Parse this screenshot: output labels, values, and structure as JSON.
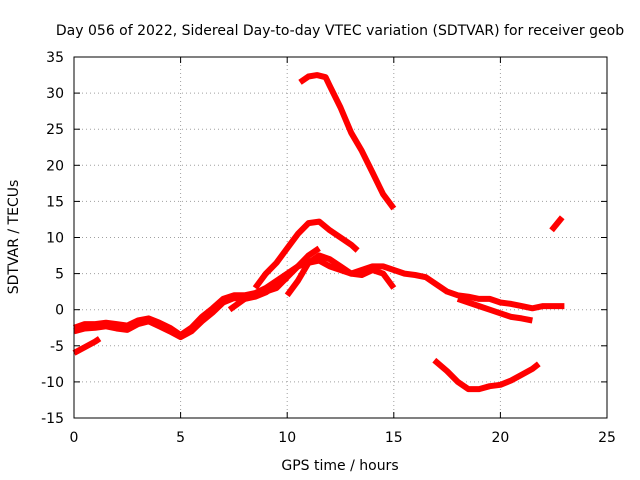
{
  "chart_data": {
    "type": "scatter",
    "title": "Day 056 of 2022, Sidereal Day-to-day VTEC variation (SDTVAR) for receiver geob",
    "xlabel": "GPS time / hours",
    "ylabel": "SDTVAR / TECUs",
    "xlim": [
      0,
      25
    ],
    "ylim": [
      -15,
      35
    ],
    "x_ticks": [
      0,
      5,
      10,
      15,
      20,
      25
    ],
    "y_ticks": [
      -15,
      -10,
      -5,
      0,
      5,
      10,
      15,
      20,
      25,
      30,
      35
    ],
    "grid": true,
    "grid_style": "dotted",
    "series_color": "#ff0000",
    "series": [
      {
        "name": "main-band-a",
        "x": [
          0,
          0.5,
          1,
          1.5,
          2,
          2.5,
          3,
          3.5,
          4,
          4.5,
          5,
          5.5,
          6,
          6.5,
          7,
          7.5,
          8,
          8.5,
          9,
          9.5,
          10,
          10.5,
          11,
          11.5,
          12,
          12.5,
          13,
          13.5,
          14,
          14.5,
          15,
          15.5,
          16,
          16.5,
          17,
          17.5,
          18,
          18.5,
          19,
          19.5,
          20,
          20.5,
          21,
          21.5,
          22,
          22.5,
          23
        ],
        "y": [
          -2.5,
          -2,
          -2,
          -1.8,
          -2,
          -2.2,
          -1.5,
          -1.2,
          -1.8,
          -2.5,
          -3.5,
          -2.5,
          -1,
          0.2,
          1.5,
          2,
          2,
          2.3,
          3,
          4,
          5,
          6,
          6.5,
          6.8,
          6,
          5.5,
          5,
          5.5,
          6,
          6,
          5.5,
          5,
          4.8,
          4.5,
          3.5,
          2.5,
          2,
          1.8,
          1.5,
          1.5,
          1,
          0.8,
          0.5,
          0.2,
          0.5,
          0.5,
          0.5
        ]
      },
      {
        "name": "main-band-b",
        "x": [
          0,
          0.5,
          1,
          1.5,
          2,
          2.5,
          3,
          3.5,
          4,
          4.5,
          5,
          5.5,
          6,
          6.5,
          7,
          7.5,
          8,
          8.5,
          9,
          9.5,
          10
        ],
        "y": [
          -3,
          -2.6,
          -2.5,
          -2.3,
          -2.6,
          -2.8,
          -2,
          -1.6,
          -2.3,
          -3,
          -3.8,
          -3,
          -1.6,
          -0.4,
          1,
          1.6,
          1.5,
          1.8,
          2.4,
          3.4,
          4.4
        ]
      },
      {
        "name": "pre-dawn-segment",
        "x": [
          0,
          0.5,
          1,
          1.2
        ],
        "y": [
          -6,
          -5.2,
          -4.4,
          -4
        ]
      },
      {
        "name": "high-arc",
        "x": [
          10.6,
          11,
          11.4,
          11.8,
          12,
          12.5,
          13,
          13.5,
          14,
          14.5,
          15
        ],
        "y": [
          31.5,
          32.3,
          32.5,
          32.2,
          31,
          28,
          24.5,
          22,
          19,
          16,
          14
        ]
      },
      {
        "name": "mid-arc",
        "x": [
          8.5,
          9,
          9.5,
          10,
          10.5,
          11,
          11.5,
          12,
          12.5,
          13,
          13.3
        ],
        "y": [
          3,
          5,
          6.5,
          8.5,
          10.5,
          12,
          12.2,
          11,
          10,
          9,
          8.2
        ]
      },
      {
        "name": "hump-segment",
        "x": [
          10,
          10.5,
          11,
          11.5,
          12,
          12.5,
          13,
          13.5,
          14,
          14.5,
          15
        ],
        "y": [
          2,
          4,
          6.5,
          7.5,
          7,
          6,
          5,
          4.8,
          5.5,
          5,
          3
        ]
      },
      {
        "name": "rising-segment",
        "x": [
          7.3,
          8,
          8.5,
          9,
          9.5,
          10,
          10.5,
          11,
          11.5
        ],
        "y": [
          0,
          1.5,
          2,
          2.5,
          3,
          4.5,
          6,
          7.5,
          8.5
        ]
      },
      {
        "name": "evening-drop",
        "x": [
          18,
          18.5,
          19,
          19.5,
          20,
          20.5,
          21,
          21.5
        ],
        "y": [
          1.5,
          1,
          0.5,
          0,
          -0.5,
          -1,
          -1.2,
          -1.5
        ]
      },
      {
        "name": "night-trough",
        "x": [
          16.9,
          17.5,
          18,
          18.5,
          19,
          19.5,
          20,
          20.5,
          21,
          21.5,
          21.8
        ],
        "y": [
          -7,
          -8.5,
          -10,
          -11,
          -11,
          -10.6,
          -10.4,
          -9.8,
          -9,
          -8.2,
          -7.5
        ]
      },
      {
        "name": "late-segment",
        "x": [
          22.4,
          22.9
        ],
        "y": [
          11,
          12.8
        ]
      }
    ]
  }
}
